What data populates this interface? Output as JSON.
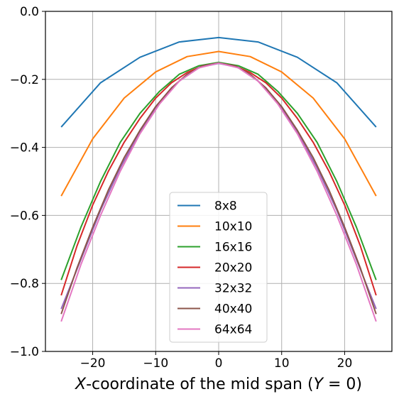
{
  "chart_data": {
    "type": "line",
    "title": "",
    "xlabel": "X-coordinate of the mid span (Y = 0)",
    "xlabel_parts": {
      "var": "X",
      "middle": "-coordinate of the mid span (",
      "var2": "Y",
      "end": " = 0)"
    },
    "ylabel": "",
    "xlim": [
      -27.5,
      27.5
    ],
    "ylim": [
      -1.0,
      0.0
    ],
    "xticks": [
      -20,
      -10,
      0,
      10,
      20
    ],
    "xtick_labels": [
      "−20",
      "−10",
      "0",
      "10",
      "20"
    ],
    "yticks": [
      0.0,
      -0.2,
      -0.4,
      -0.6,
      -0.8,
      -1.0
    ],
    "ytick_labels": [
      "0.0",
      "−0.2",
      "−0.4",
      "−0.6",
      "−0.8",
      "−1.0"
    ],
    "grid": true,
    "legend_position": "lower-center",
    "series": [
      {
        "name": "8x8",
        "color": "#1f77b4",
        "x": [
          -25,
          -18.75,
          -12.5,
          -6.25,
          0,
          6.25,
          12.5,
          18.75,
          25
        ],
        "y": [
          -0.34,
          -0.21,
          -0.135,
          -0.09,
          -0.077,
          -0.09,
          -0.135,
          -0.21,
          -0.34
        ]
      },
      {
        "name": "10x10",
        "color": "#ff7f0e",
        "x": [
          -25,
          -20,
          -15,
          -10,
          -5,
          0,
          5,
          10,
          15,
          20,
          25
        ],
        "y": [
          -0.543,
          -0.375,
          -0.255,
          -0.178,
          -0.133,
          -0.118,
          -0.133,
          -0.178,
          -0.255,
          -0.375,
          -0.543
        ]
      },
      {
        "name": "16x16",
        "color": "#2ca02c",
        "x": [
          -25,
          -21.875,
          -18.75,
          -15.625,
          -12.5,
          -9.375,
          -6.25,
          -3.125,
          0,
          3.125,
          6.25,
          9.375,
          12.5,
          15.625,
          18.75,
          21.875,
          25
        ],
        "y": [
          -0.79,
          -0.635,
          -0.5,
          -0.385,
          -0.3,
          -0.235,
          -0.185,
          -0.16,
          -0.15,
          -0.16,
          -0.185,
          -0.235,
          -0.3,
          -0.385,
          -0.5,
          -0.635,
          -0.79
        ]
      },
      {
        "name": "20x20",
        "color": "#d62728",
        "x": [
          -25,
          -22.5,
          -20,
          -17.5,
          -15,
          -12.5,
          -10,
          -7.5,
          -5,
          -2.5,
          0,
          2.5,
          5,
          7.5,
          10,
          12.5,
          15,
          17.5,
          20,
          22.5,
          25
        ],
        "y": [
          -0.835,
          -0.69,
          -0.57,
          -0.47,
          -0.385,
          -0.315,
          -0.255,
          -0.21,
          -0.18,
          -0.16,
          -0.152,
          -0.16,
          -0.18,
          -0.21,
          -0.255,
          -0.315,
          -0.385,
          -0.47,
          -0.57,
          -0.69,
          -0.835
        ]
      },
      {
        "name": "32x32",
        "color": "#9467bd",
        "x": [
          -25,
          -21.875,
          -18.75,
          -15.625,
          -12.5,
          -9.375,
          -6.25,
          -3.125,
          0,
          3.125,
          6.25,
          9.375,
          12.5,
          15.625,
          18.75,
          21.875,
          25
        ],
        "y": [
          -0.875,
          -0.73,
          -0.585,
          -0.46,
          -0.355,
          -0.268,
          -0.205,
          -0.165,
          -0.153,
          -0.165,
          -0.205,
          -0.268,
          -0.355,
          -0.46,
          -0.585,
          -0.73,
          -0.875
        ]
      },
      {
        "name": "40x40",
        "color": "#8c564b",
        "x": [
          -25,
          -22.5,
          -20,
          -17.5,
          -15,
          -12.5,
          -10,
          -7.5,
          -5,
          -2.5,
          0,
          2.5,
          5,
          7.5,
          10,
          12.5,
          15,
          17.5,
          20,
          22.5,
          25
        ],
        "y": [
          -0.89,
          -0.755,
          -0.635,
          -0.525,
          -0.43,
          -0.35,
          -0.28,
          -0.225,
          -0.185,
          -0.16,
          -0.152,
          -0.16,
          -0.185,
          -0.225,
          -0.28,
          -0.35,
          -0.43,
          -0.525,
          -0.635,
          -0.755,
          -0.89
        ]
      },
      {
        "name": "64x64",
        "color": "#e377c2",
        "x": [
          -25,
          -21.875,
          -18.75,
          -15.625,
          -12.5,
          -9.375,
          -6.25,
          -3.125,
          0,
          3.125,
          6.25,
          9.375,
          12.5,
          15.625,
          18.75,
          21.875,
          25
        ],
        "y": [
          -0.912,
          -0.745,
          -0.6,
          -0.47,
          -0.36,
          -0.272,
          -0.205,
          -0.166,
          -0.152,
          -0.166,
          -0.205,
          -0.272,
          -0.36,
          -0.47,
          -0.6,
          -0.745,
          -0.912
        ]
      }
    ]
  }
}
